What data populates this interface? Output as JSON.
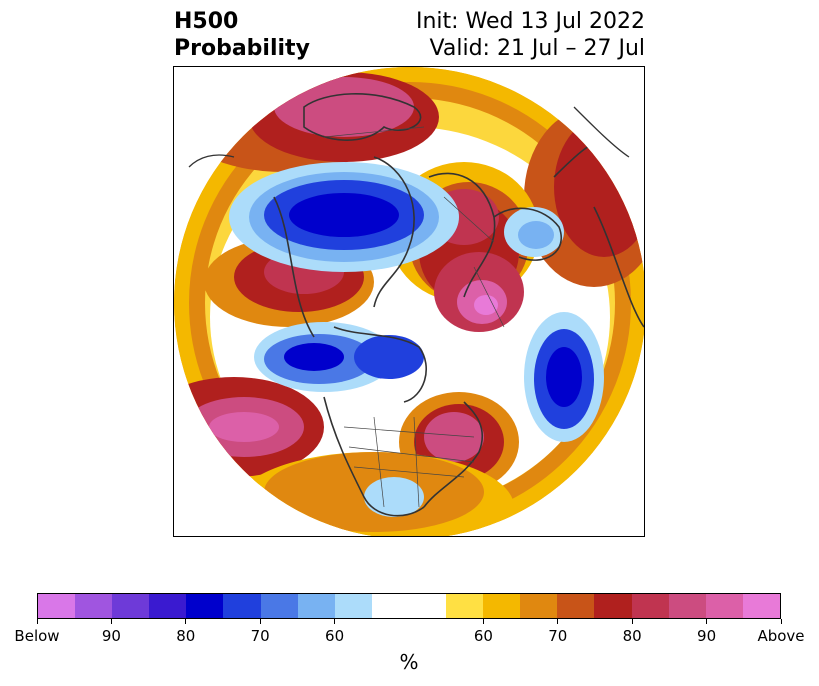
{
  "title": {
    "left_line1": "H500",
    "left_line2": "Probability",
    "right_line1": "Init: Wed 13 Jul 2022",
    "right_line2": "Valid: 21 Jul – 27 Jul"
  },
  "colorbar": {
    "unit": "%",
    "tick_labels": [
      "Below",
      "90",
      "80",
      "70",
      "60",
      "60",
      "70",
      "80",
      "90",
      "Above"
    ],
    "colors": {
      "below": [
        "#d977e8",
        "#a055e0",
        "#6e3ad8",
        "#3a1ad0",
        "#0000cc",
        "#2040dd",
        "#4a78e6",
        "#78b2f2",
        "#acdcfa"
      ],
      "neutral": "#ffffff",
      "above": [
        "#ffe043",
        "#f4b800",
        "#e08810",
        "#c85418",
        "#b0201e",
        "#c03450",
        "#cc4c80",
        "#dc60a8",
        "#e87ad8"
      ]
    }
  },
  "map": {
    "projection": "north polar stereographic",
    "coastline_color": "#333333"
  }
}
